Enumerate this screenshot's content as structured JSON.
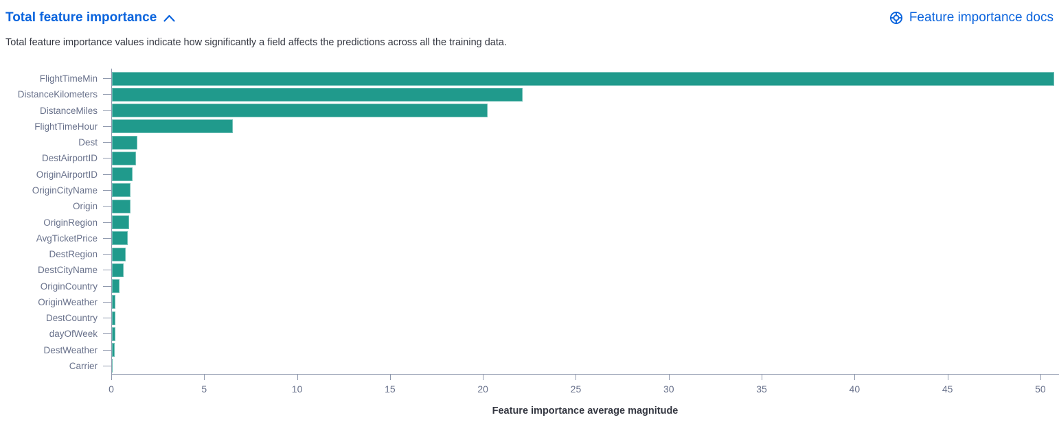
{
  "header": {
    "title": "Total feature importance",
    "docs_link_label": "Feature importance docs",
    "description": "Total feature importance values indicate how significantly a field affects the predictions across all the training data."
  },
  "colors": {
    "link_blue": "#0B64DD",
    "bar_teal": "#209A8C",
    "axis_line": "#8E98AD",
    "tick_label_text": "#68718B",
    "body_text": "#343741"
  },
  "chart_data": {
    "type": "bar",
    "orientation": "horizontal",
    "title": "Total feature importance",
    "xlabel": "Feature importance average magnitude",
    "ylabel": "",
    "xlim": [
      0,
      51
    ],
    "x_ticks": [
      0,
      5,
      10,
      15,
      20,
      25,
      30,
      35,
      40,
      45,
      50
    ],
    "grid": false,
    "legend": "none",
    "categories": [
      "FlightTimeMin",
      "DistanceKilometers",
      "DistanceMiles",
      "FlightTimeHour",
      "Dest",
      "DestAirportID",
      "OriginAirportID",
      "OriginCityName",
      "Origin",
      "OriginRegion",
      "AvgTicketPrice",
      "DestRegion",
      "DestCityName",
      "OriginCountry",
      "OriginWeather",
      "DestCountry",
      "dayOfWeek",
      "DestWeather",
      "Carrier"
    ],
    "values": [
      50.7,
      22.1,
      20.2,
      6.5,
      1.35,
      1.3,
      1.1,
      1.0,
      0.98,
      0.92,
      0.85,
      0.75,
      0.63,
      0.42,
      0.2,
      0.18,
      0.17,
      0.15,
      0.05
    ]
  }
}
